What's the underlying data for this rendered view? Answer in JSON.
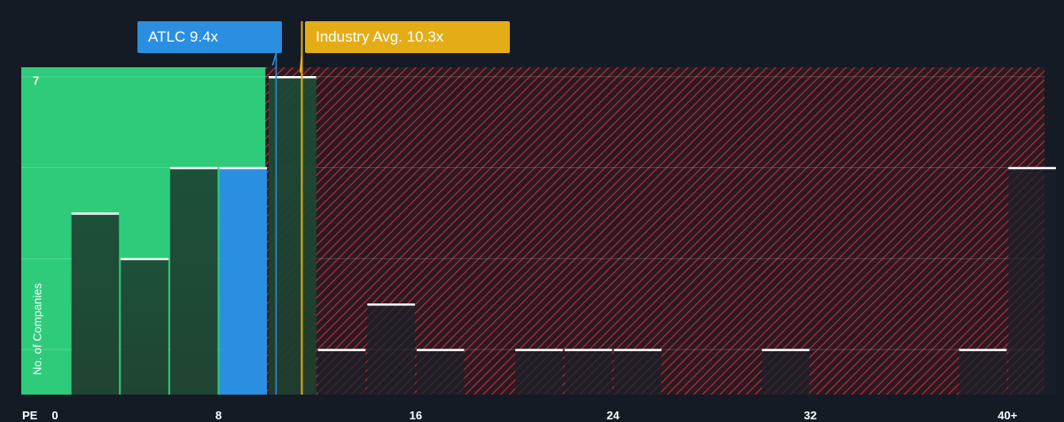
{
  "chart_data": {
    "type": "bar",
    "xlabel": "PE",
    "ylabel": "No. of Companies",
    "x_ticks": [
      "0",
      "8",
      "16",
      "24",
      "32",
      "40+"
    ],
    "x_tick_values": [
      0,
      8,
      16,
      24,
      32,
      40
    ],
    "y_ticks": [
      "7"
    ],
    "y_tick_values": [
      7
    ],
    "xlim": [
      0,
      41.5
    ],
    "ylim": [
      0,
      7.2
    ],
    "bin_width": 2,
    "bins": [
      {
        "start": 2,
        "end": 4,
        "count": 4
      },
      {
        "start": 4,
        "end": 6,
        "count": 3
      },
      {
        "start": 6,
        "end": 8,
        "count": 5
      },
      {
        "start": 8,
        "end": 10,
        "count": 5,
        "highlight": true
      },
      {
        "start": 10,
        "end": 12,
        "count": 7
      },
      {
        "start": 12,
        "end": 14,
        "count": 1
      },
      {
        "start": 14,
        "end": 16,
        "count": 2
      },
      {
        "start": 16,
        "end": 18,
        "count": 1
      },
      {
        "start": 20,
        "end": 22,
        "count": 1
      },
      {
        "start": 22,
        "end": 24,
        "count": 1
      },
      {
        "start": 24,
        "end": 26,
        "count": 1
      },
      {
        "start": 30,
        "end": 32,
        "count": 1
      },
      {
        "start": 38,
        "end": 40,
        "count": 1
      },
      {
        "start": 40,
        "end": 42,
        "count": 5
      }
    ],
    "company": {
      "label": "ATLC 9.4x",
      "value": 9.4
    },
    "industry_avg": {
      "label": "Industry Avg. 10.3x",
      "value": 10.3
    },
    "colors": {
      "background": "#151b24",
      "undervalued_zone": "#2ecc7a",
      "overvalued_hatch": "#c0303c",
      "company": "#2a8fe0",
      "industry": "#e4ad18",
      "bar": "#1e2a2e",
      "cap": "#ffffff"
    },
    "grid": true
  }
}
